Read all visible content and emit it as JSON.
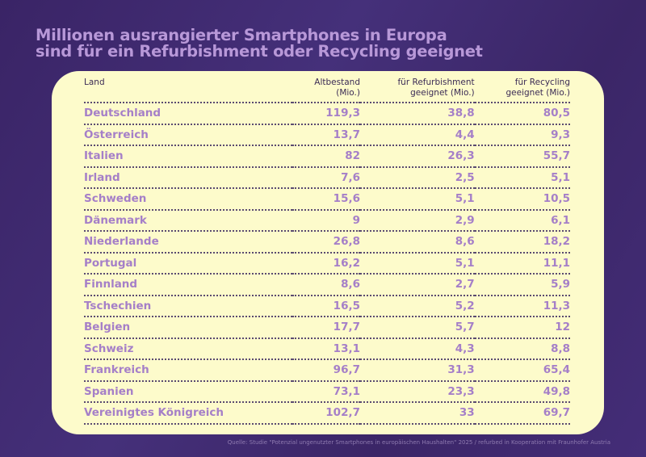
{
  "title": {
    "line1": "Millionen ausrangierter Smartphones in Europa",
    "line2": "sind für ein Refurbishment oder Recycling geeignet"
  },
  "table": {
    "headers": [
      {
        "l1": "Land",
        "l2": ""
      },
      {
        "l1": "Altbestand",
        "l2": "(Mio.)"
      },
      {
        "l1": "für Refurbishment",
        "l2": "geeignet (Mio.)"
      },
      {
        "l1": "für Recycling",
        "l2": "geeignet (Mio.)"
      }
    ],
    "rows": [
      [
        "Deutschland",
        "119,3",
        "38,8",
        "80,5"
      ],
      [
        "Österreich",
        "13,7",
        "4,4",
        "9,3"
      ],
      [
        "Italien",
        "82",
        "26,3",
        "55,7"
      ],
      [
        "Irland",
        "7,6",
        "2,5",
        "5,1"
      ],
      [
        "Schweden",
        "15,6",
        "5,1",
        "10,5"
      ],
      [
        "Dänemark",
        "9",
        "2,9",
        "6,1"
      ],
      [
        "Niederlande",
        "26,8",
        "8,6",
        "18,2"
      ],
      [
        "Portugal",
        "16,2",
        "5,1",
        "11,1"
      ],
      [
        "Finnland",
        "8,6",
        "2,7",
        "5,9"
      ],
      [
        "Tschechien",
        "16,5",
        "5,2",
        "11,3"
      ],
      [
        "Belgien",
        "17,7",
        "5,7",
        "12"
      ],
      [
        "Schweiz",
        "13,1",
        "4,3",
        "8,8"
      ],
      [
        "Frankreich",
        "96,7",
        "31,3",
        "65,4"
      ],
      [
        "Spanien",
        "73,1",
        "23,3",
        "49,8"
      ],
      [
        "Vereinigtes Königreich",
        "102,7",
        "33",
        "69,7"
      ]
    ]
  },
  "source": "Quelle: Studie \"Potenzial ungenutzter Smartphones in europäischen Haushalten\" 2025 / refurbed in Kooperation mit Fraunhofer Austria",
  "colors": {
    "background": "#3d2768",
    "title": "#b898d8",
    "card": "#fdfbcb",
    "values": "#a57fc8"
  }
}
